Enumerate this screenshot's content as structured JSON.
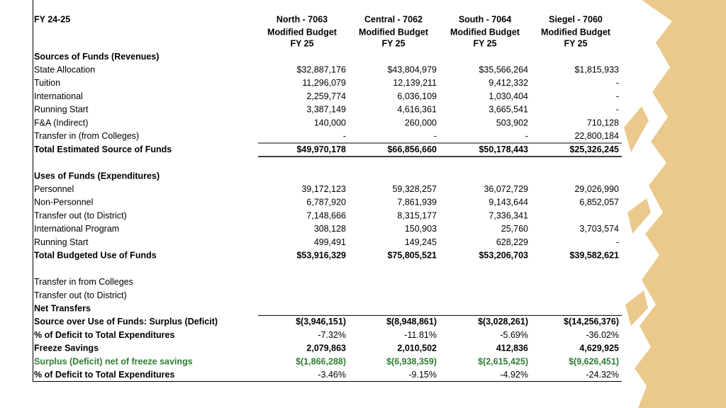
{
  "table": {
    "corner": "FY 24-25",
    "columns": [
      {
        "name": "North - 7063",
        "line1": "Modified Budget",
        "line2": "FY 25"
      },
      {
        "name": "Central - 7062",
        "line1": "Modified Budget",
        "line2": "FY 25"
      },
      {
        "name": "South - 7064",
        "line1": "Modified Budget",
        "line2": "FY 25"
      },
      {
        "name": "Siegel - 7060",
        "line1": "Modified Budget",
        "line2": "FY 25"
      }
    ],
    "sections": [
      {
        "rows": [
          {
            "label": "Sources of Funds (Revenues)",
            "bold": true
          },
          {
            "label": "State Allocation",
            "values": [
              "$32,887,176",
              "$43,804,979",
              "$35,566,264",
              "$1,815,933"
            ]
          },
          {
            "label": "Tuition",
            "values": [
              "11,296,079",
              "12,139,211",
              "9,412,332",
              "-"
            ]
          },
          {
            "label": "International",
            "values": [
              "2,259,774",
              "6,036,109",
              "1,030,404",
              "-"
            ]
          },
          {
            "label": "Running Start",
            "values": [
              "3,387,149",
              "4,616,361",
              "3,665,541",
              "-"
            ]
          },
          {
            "label": "F&A (Indirect)",
            "values": [
              "140,000",
              "260,000",
              "503,902",
              "710,128"
            ]
          },
          {
            "label": "Transfer in (from Colleges)",
            "values": [
              "-",
              "-",
              "-",
              "22,800,184"
            ]
          },
          {
            "label": "Total Estimated Source of Funds",
            "bold": true,
            "rule_above": true,
            "rule_below": true,
            "values": [
              "$49,970,178",
              "$66,856,660",
              "$50,178,443",
              "$25,326,245"
            ]
          }
        ]
      },
      {
        "rows": [
          {
            "label": "Uses of Funds (Expenditures)",
            "bold": true
          },
          {
            "label": "Personnel",
            "values": [
              "39,172,123",
              "59,328,257",
              "36,072,729",
              "29,026,990"
            ]
          },
          {
            "label": "Non-Personnel",
            "values": [
              "6,787,920",
              "7,861,939",
              "9,143,644",
              "6,852,057"
            ]
          },
          {
            "label": "Transfer out (to District)",
            "values": [
              "7,148,666",
              "8,315,177",
              "7,336,341",
              ""
            ]
          },
          {
            "label": "International Program",
            "values": [
              "308,128",
              "150,903",
              "25,760",
              "3,703,574"
            ]
          },
          {
            "label": "Running Start",
            "values": [
              "499,491",
              "149,245",
              "628,229",
              "-"
            ]
          },
          {
            "label": "Total Budgeted  Use of Funds",
            "bold": true,
            "values": [
              "$53,916,329",
              "$75,805,521",
              "$53,206,703",
              "$39,582,621"
            ]
          }
        ]
      },
      {
        "rows": [
          {
            "label": "Transfer in from Colleges"
          },
          {
            "label": "Transfer out (to District)"
          },
          {
            "label": "Net Transfers",
            "bold": true
          },
          {
            "label": "Source over Use of Funds: Surplus (Deficit)",
            "bold": true,
            "rule_above": true,
            "values": [
              "$(3,946,151)",
              "$(8,948,861)",
              "$(3,028,261)",
              "$(14,256,376)"
            ]
          },
          {
            "label": "% of Deficit to Total Expenditures",
            "bold": true,
            "plain_values": true,
            "values": [
              "-7.32%",
              "-11.81%",
              "-5.69%",
              "-36.02%"
            ]
          },
          {
            "label": "Freeze Savings",
            "bold": true,
            "values": [
              "2,079,863",
              "2,010,502",
              "412,836",
              "4,629,925"
            ]
          },
          {
            "label": "Surplus (Deficit) net of freeze savings",
            "bold": true,
            "color": "#2e7d32",
            "values": [
              "$(1,866,288)",
              "$(6,938,359)",
              "$(2,615,425)",
              "$(9,626,451)"
            ]
          },
          {
            "label": "% of Deficit to Total Expenditures",
            "bold": true,
            "plain_values": true,
            "values": [
              "-3.46%",
              "-9.15%",
              "-4.92%",
              "-24.32%"
            ]
          }
        ]
      }
    ]
  }
}
